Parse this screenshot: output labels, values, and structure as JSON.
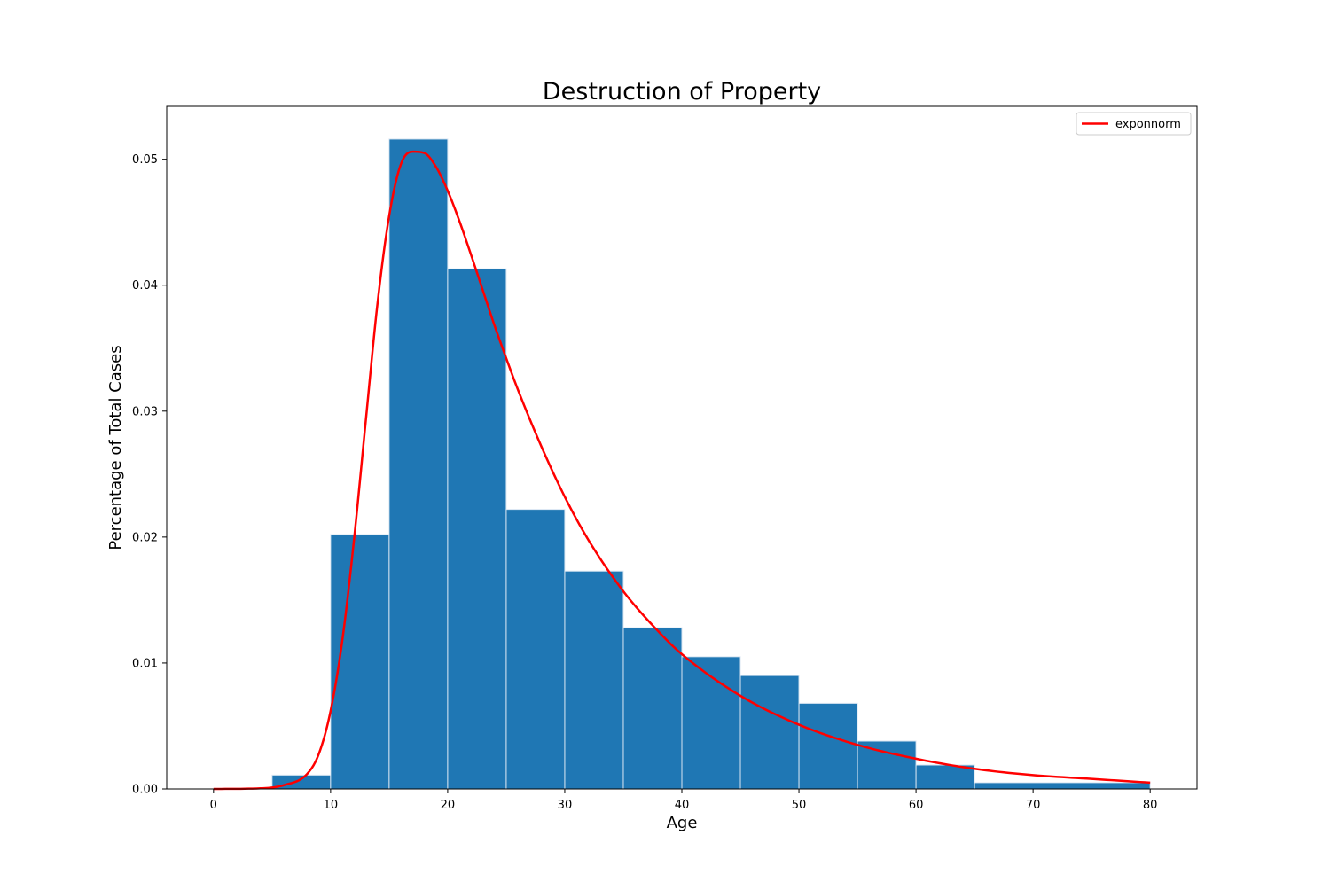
{
  "chart_data": {
    "type": "bar",
    "title": "Destruction of Property",
    "xlabel": "Age",
    "ylabel": "Percentage of Total Cases",
    "xlim": [
      -4,
      84
    ],
    "ylim": [
      0,
      0.0542
    ],
    "x_ticks": [
      0,
      10,
      20,
      30,
      40,
      50,
      60,
      70,
      80
    ],
    "x_tick_labels": [
      "0",
      "10",
      "20",
      "30",
      "40",
      "50",
      "60",
      "70",
      "80"
    ],
    "y_ticks": [
      0,
      0.01,
      0.02,
      0.03,
      0.04,
      0.05
    ],
    "y_tick_labels": [
      "0.00",
      "0.01",
      "0.02",
      "0.03",
      "0.04",
      "0.05"
    ],
    "grid": false,
    "legend_position": "top-right",
    "histogram": {
      "bin_edges": [
        5,
        10,
        15,
        20,
        25,
        30,
        35,
        40,
        45,
        50,
        55,
        60,
        65,
        80
      ],
      "values": [
        0.0011,
        0.0202,
        0.0516,
        0.0413,
        0.0222,
        0.0173,
        0.0128,
        0.0105,
        0.009,
        0.0068,
        0.0038,
        0.0019,
        0.0005
      ],
      "color": "#1f77b4",
      "edge_color": "#d9e6f2"
    },
    "series": [
      {
        "name": "exponnorm",
        "type": "line",
        "color": "#ff0000",
        "x": [
          0,
          4,
          6,
          8,
          9,
          10,
          11,
          12,
          13,
          14,
          15,
          16,
          17,
          18,
          19,
          20,
          21,
          22,
          23,
          24,
          25,
          26,
          28,
          30,
          32,
          35,
          38,
          40,
          45,
          50,
          55,
          60,
          65,
          70,
          75,
          80
        ],
        "y": [
          0,
          5e-05,
          0.0003,
          0.0012,
          0.0028,
          0.0062,
          0.0118,
          0.0198,
          0.0292,
          0.0385,
          0.0455,
          0.0496,
          0.0506,
          0.0505,
          0.0494,
          0.0475,
          0.0451,
          0.0424,
          0.0396,
          0.0368,
          0.0342,
          0.0317,
          0.0272,
          0.0232,
          0.0198,
          0.0157,
          0.0125,
          0.0107,
          0.0074,
          0.0051,
          0.0035,
          0.0024,
          0.0016,
          0.0011,
          0.0008,
          0.0005
        ]
      }
    ]
  }
}
